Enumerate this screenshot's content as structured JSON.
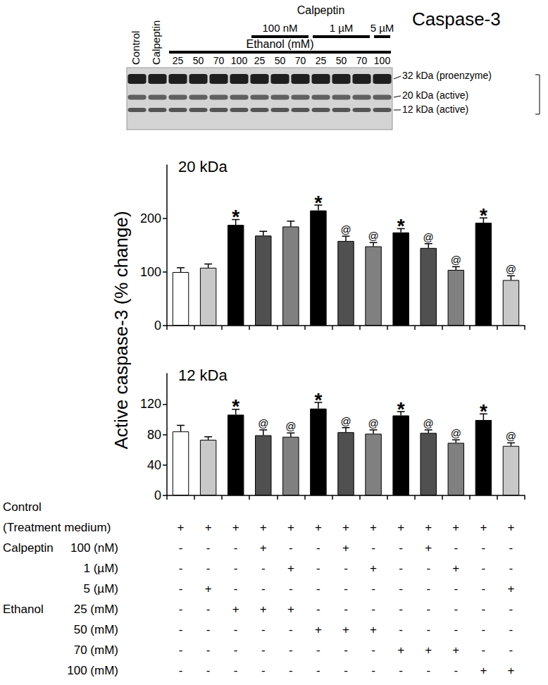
{
  "blot": {
    "title": "Caspase-3",
    "lane_labels": [
      "Control",
      "Calpeptin"
    ],
    "ethanol_label": "Ethanol (mM)",
    "ethanol_lanes": [
      25,
      50,
      70,
      100,
      25,
      50,
      70,
      25,
      50,
      70,
      100
    ],
    "calpeptin_label": "Calpeptin",
    "calpeptin_groups": [
      {
        "label": "100 nM",
        "lanes": 3
      },
      {
        "label": "1 µM",
        "lanes": 3
      },
      {
        "label": "5 µM",
        "lanes": 1
      }
    ],
    "bands": [
      "32 kDa (proenzyme)",
      "20 kDa (active)",
      "12 kDa (active)"
    ]
  },
  "chart_data": [
    {
      "type": "bar",
      "title": "20 kDa",
      "ylabel": "Active caspase-3 (% change)",
      "categories": [
        null,
        null,
        null,
        null,
        null,
        null,
        null,
        null,
        null,
        null,
        null,
        null,
        null
      ],
      "values": [
        100,
        108,
        188,
        168,
        185,
        215,
        158,
        148,
        174,
        145,
        104,
        192,
        85
      ],
      "errors": [
        8,
        7,
        10,
        8,
        10,
        10,
        9,
        7,
        7,
        8,
        6,
        9,
        8
      ],
      "annotations": [
        null,
        null,
        "*",
        null,
        null,
        "*",
        "@",
        "@",
        "*",
        "@",
        "@",
        "*",
        "@"
      ],
      "colors": [
        "#ffffff",
        "#c8c8c8",
        "#000000",
        "#505050",
        "#808080",
        "#000000",
        "#505050",
        "#808080",
        "#000000",
        "#505050",
        "#808080",
        "#000000",
        "#c8c8c8"
      ],
      "ylim": [
        0,
        300
      ],
      "yticks": [
        0,
        100,
        200
      ],
      "grid": false,
      "tick_labels": "y"
    },
    {
      "type": "bar",
      "title": "12 kDa",
      "categories": [
        null,
        null,
        null,
        null,
        null,
        null,
        null,
        null,
        null,
        null,
        null,
        null,
        null
      ],
      "values": [
        84,
        73,
        106,
        79,
        77,
        114,
        83,
        81,
        105,
        82,
        69,
        99,
        65
      ],
      "errors": [
        8,
        4,
        7,
        7,
        5,
        8,
        6,
        5,
        5,
        4,
        4,
        8,
        4
      ],
      "annotations": [
        null,
        null,
        "*",
        "@",
        "@",
        "*",
        "@",
        "@",
        "*",
        "@",
        "@",
        "*",
        "@"
      ],
      "colors": [
        "#ffffff",
        "#c8c8c8",
        "#000000",
        "#505050",
        "#808080",
        "#000000",
        "#505050",
        "#808080",
        "#000000",
        "#505050",
        "#808080",
        "#000000",
        "#c8c8c8"
      ],
      "ylim": [
        0,
        160
      ],
      "yticks": [
        0,
        40,
        80,
        120
      ],
      "grid": false,
      "tick_labels": "y"
    }
  ],
  "treatment_table": {
    "rows": [
      {
        "label": "Control",
        "sublabel": "(Treatment medium)",
        "signs": [
          "+",
          "+",
          "+",
          "+",
          "+",
          "+",
          "+",
          "+",
          "+",
          "+",
          "+",
          "+",
          "+"
        ]
      },
      {
        "group": "Calpeptin",
        "label": "100 (nM)",
        "signs": [
          "-",
          "-",
          "-",
          "+",
          "-",
          "-",
          "+",
          "-",
          "-",
          "+",
          "-",
          "-",
          "-"
        ]
      },
      {
        "label": "1 (µM)",
        "signs": [
          "-",
          "-",
          "-",
          "-",
          "+",
          "-",
          "-",
          "+",
          "-",
          "-",
          "+",
          "-",
          "-"
        ]
      },
      {
        "label": "5 (µM)",
        "signs": [
          "-",
          "+",
          "-",
          "-",
          "-",
          "-",
          "-",
          "-",
          "-",
          "-",
          "-",
          "-",
          "+"
        ]
      },
      {
        "group": "Ethanol",
        "label": "25 (mM)",
        "signs": [
          "-",
          "-",
          "+",
          "+",
          "+",
          "-",
          "-",
          "-",
          "-",
          "-",
          "-",
          "-",
          "-"
        ]
      },
      {
        "label": "50 (mM)",
        "signs": [
          "-",
          "-",
          "-",
          "-",
          "-",
          "+",
          "+",
          "+",
          "-",
          "-",
          "-",
          "-",
          "-"
        ]
      },
      {
        "label": "70 (mM)",
        "signs": [
          "-",
          "-",
          "-",
          "-",
          "-",
          "-",
          "-",
          "-",
          "+",
          "+",
          "+",
          "-",
          "-"
        ]
      },
      {
        "label": "100 (mM)",
        "signs": [
          "-",
          "-",
          "-",
          "-",
          "-",
          "-",
          "-",
          "-",
          "-",
          "-",
          "-",
          "+",
          "+"
        ]
      }
    ]
  }
}
